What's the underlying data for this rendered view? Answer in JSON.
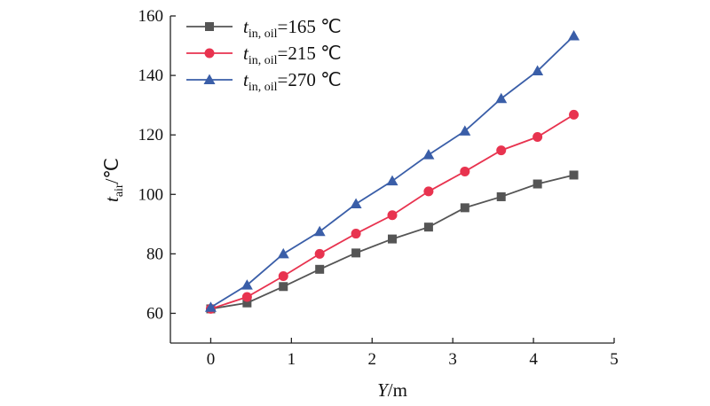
{
  "chart_data": {
    "type": "line",
    "x": [
      0,
      0.45,
      0.9,
      1.35,
      1.8,
      2.25,
      2.7,
      3.15,
      3.6,
      4.05,
      4.5
    ],
    "xlim": [
      -0.5,
      5
    ],
    "ylim": [
      50,
      160
    ],
    "x_ticks": [
      "0",
      "1",
      "2",
      "3",
      "4",
      "5"
    ],
    "y_ticks": [
      "60",
      "80",
      "100",
      "120",
      "140",
      "160"
    ],
    "xlabel": {
      "var": "Y",
      "unit": "/m"
    },
    "ylabel": {
      "var": "t",
      "sub": "air",
      "unit": "/℃"
    },
    "legend_position": "top-left",
    "grid": false,
    "series": [
      {
        "legend_var": "t",
        "legend_sub": "in, oil",
        "legend_value": "=165 ℃",
        "marker": "square",
        "color": "#555555",
        "values": [
          61.5,
          63.5,
          69,
          74.8,
          80.3,
          85,
          89,
          95.5,
          99.2,
          103.5,
          106.5
        ]
      },
      {
        "legend_var": "t",
        "legend_sub": "in, oil",
        "legend_value": "=215 ℃",
        "marker": "circle",
        "color": "#e8334f",
        "values": [
          61.5,
          65.5,
          72.5,
          80,
          86.8,
          93,
          101,
          107.7,
          114.8,
          119.3,
          126.8
        ]
      },
      {
        "legend_var": "t",
        "legend_sub": "in, oil",
        "legend_value": "=270 ℃",
        "marker": "triangle",
        "color": "#3a5ea8",
        "values": [
          62,
          69.5,
          80,
          87.5,
          96.8,
          104.5,
          113.3,
          121.3,
          132.2,
          141.5,
          153.3
        ]
      }
    ]
  }
}
